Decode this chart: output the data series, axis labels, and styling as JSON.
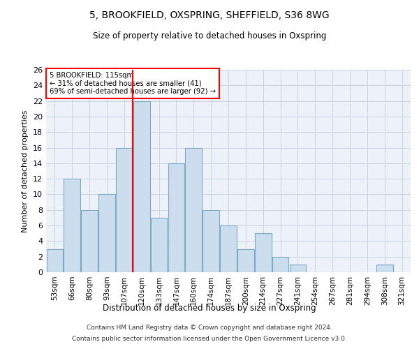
{
  "title": "5, BROOKFIELD, OXSPRING, SHEFFIELD, S36 8WG",
  "subtitle": "Size of property relative to detached houses in Oxspring",
  "xlabel": "Distribution of detached houses by size in Oxspring",
  "ylabel": "Number of detached properties",
  "categories": [
    "53sqm",
    "66sqm",
    "80sqm",
    "93sqm",
    "107sqm",
    "120sqm",
    "133sqm",
    "147sqm",
    "160sqm",
    "174sqm",
    "187sqm",
    "200sqm",
    "214sqm",
    "227sqm",
    "241sqm",
    "254sqm",
    "267sqm",
    "281sqm",
    "294sqm",
    "308sqm",
    "321sqm"
  ],
  "values": [
    3,
    12,
    8,
    10,
    16,
    22,
    7,
    14,
    16,
    8,
    6,
    3,
    5,
    2,
    1,
    0,
    0,
    0,
    0,
    1,
    0
  ],
  "bar_color": "#ccdded",
  "bar_edge_color": "#7aaac8",
  "reference_label": "5 BROOKFIELD: 115sqm",
  "annotation_line1": "← 31% of detached houses are smaller (41)",
  "annotation_line2": "69% of semi-detached houses are larger (92) →",
  "ylim": [
    0,
    26
  ],
  "yticks": [
    0,
    2,
    4,
    6,
    8,
    10,
    12,
    14,
    16,
    18,
    20,
    22,
    24,
    26
  ],
  "grid_color": "#c8d4e4",
  "background_color": "#edf1f8",
  "footnote1": "Contains HM Land Registry data © Crown copyright and database right 2024.",
  "footnote2": "Contains public sector information licensed under the Open Government Licence v3.0."
}
